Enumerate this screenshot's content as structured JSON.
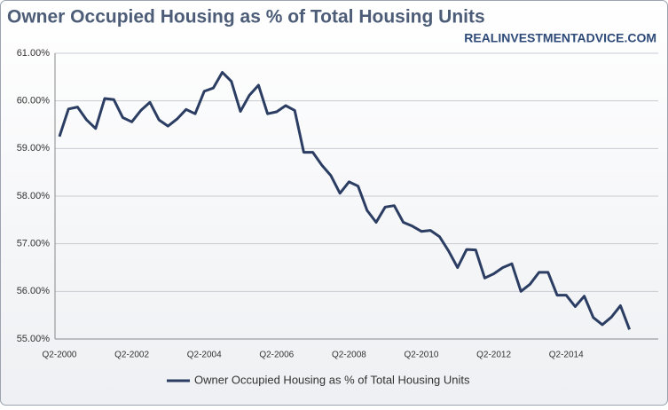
{
  "chart_data": {
    "type": "line",
    "title": "Owner Occupied Housing as % of Total Housing Units",
    "watermark": "REALINVESTMENTADVICE.COM",
    "categories": [
      "Q2-2000",
      null,
      null,
      null,
      null,
      null,
      null,
      null,
      "Q2-2002",
      null,
      null,
      null,
      null,
      null,
      null,
      null,
      "Q2-2004",
      null,
      null,
      null,
      null,
      null,
      null,
      null,
      "Q2-2006",
      null,
      null,
      null,
      null,
      null,
      null,
      null,
      "Q2-2008",
      null,
      null,
      null,
      null,
      null,
      null,
      null,
      "Q2-2010",
      null,
      null,
      null,
      null,
      null,
      null,
      null,
      "Q2-2012",
      null,
      null,
      null,
      null,
      null,
      null,
      null,
      "Q2-2014",
      null,
      null,
      null,
      null,
      null,
      null,
      null
    ],
    "series": [
      {
        "name": "Owner Occupied Housing as % of Total Housing Units",
        "color": "#2b3d62",
        "values": [
          59.25,
          59.83,
          59.87,
          59.6,
          59.42,
          60.05,
          60.03,
          59.65,
          59.56,
          59.8,
          59.97,
          59.6,
          59.47,
          59.62,
          59.82,
          59.73,
          60.2,
          60.27,
          60.6,
          60.41,
          59.78,
          60.12,
          60.33,
          59.73,
          59.77,
          59.9,
          59.8,
          58.92,
          58.92,
          58.65,
          58.43,
          58.06,
          58.3,
          58.21,
          57.7,
          57.45,
          57.77,
          57.8,
          57.45,
          57.37,
          57.26,
          57.28,
          57.15,
          56.85,
          56.5,
          56.88,
          56.87,
          56.28,
          56.37,
          56.5,
          56.58,
          56.0,
          56.15,
          56.4,
          56.4,
          55.92,
          55.92,
          55.68,
          55.9,
          55.45,
          55.3,
          55.46,
          55.7,
          55.2
        ]
      }
    ],
    "ylim": [
      55,
      61
    ],
    "yticks": [
      {
        "value": 55,
        "label": "55.00%"
      },
      {
        "value": 56,
        "label": "56.00%"
      },
      {
        "value": 57,
        "label": "57.00%"
      },
      {
        "value": 58,
        "label": "58.00%"
      },
      {
        "value": 59,
        "label": "59.00%"
      },
      {
        "value": 60,
        "label": "60.00%"
      },
      {
        "value": 61,
        "label": "61.00%"
      }
    ],
    "grid": true
  }
}
